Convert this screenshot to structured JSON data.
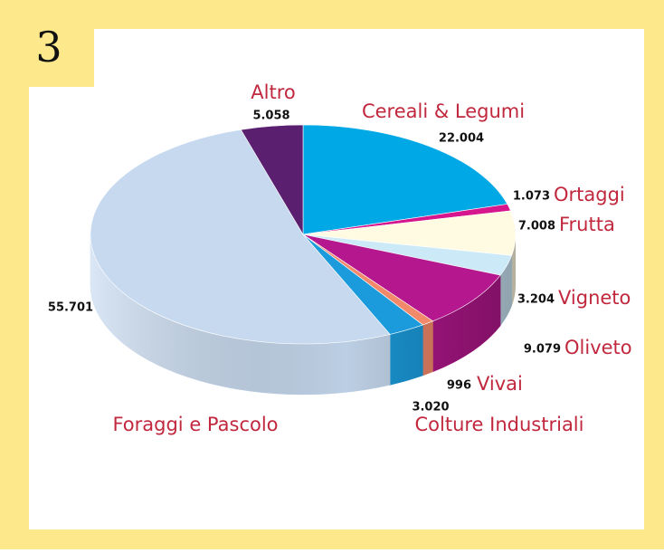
{
  "chart_data": {
    "type": "pie",
    "title": "3",
    "categories": [
      "Cereali & Legumi",
      "Ortaggi",
      "Frutta",
      "Vigneto",
      "Oliveto",
      "Vivai",
      "Colture Industriali",
      "Foraggi e Pascolo",
      "Altro"
    ],
    "values": [
      22004,
      1073,
      7008,
      3204,
      9079,
      996,
      3020,
      55701,
      5058
    ],
    "value_labels": [
      "22.004",
      "1.073",
      "7.008",
      "3.204",
      "9.079",
      "996",
      "3.020",
      "55.701",
      "5.058"
    ],
    "colors": [
      "#00a9e6",
      "#d6168d",
      "#fffbe3",
      "#cce9f8",
      "#b4178e",
      "#f2896b",
      "#1b9bdb",
      "#c6d9ef",
      "#5b1f6f"
    ]
  }
}
